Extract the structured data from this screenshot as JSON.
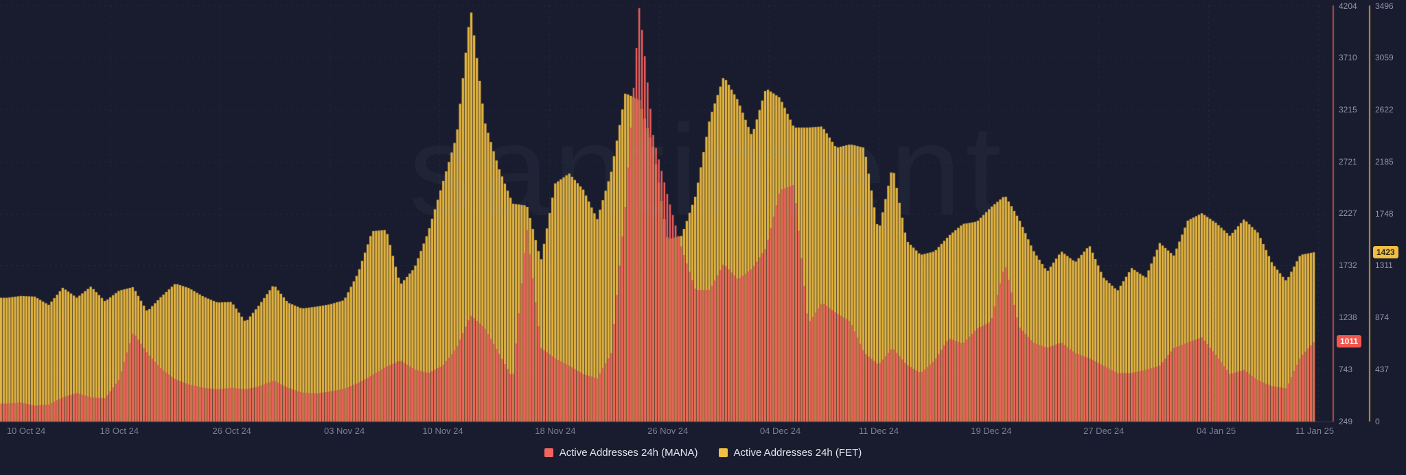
{
  "watermark": "santiment",
  "colors": {
    "background": "#191C2E",
    "mana": "#EE5F5C",
    "fet": "#E3B440",
    "mana_axis_line": "#E05B55",
    "fet_axis_line": "#E3B23C",
    "grid": "rgba(150,160,195,0.10)",
    "baseline": "#343950",
    "tick_text": "#8F94A8",
    "xlabel_text": "#7A7F95"
  },
  "badges": {
    "mana": "1011",
    "fet": "1423"
  },
  "legend": [
    {
      "label": "Active Addresses 24h (MANA)",
      "color": "#F16460"
    },
    {
      "label": "Active Addresses 24h (FET)",
      "color": "#F0BE44"
    }
  ],
  "chart_data": {
    "type": "bar",
    "title": "",
    "xlabel": "",
    "ylabel": "",
    "grid": true,
    "legend_position": "bottom",
    "x_labels": [
      {
        "label": "10 Oct 24",
        "day": 0
      },
      {
        "label": "18 Oct 24",
        "day": 8
      },
      {
        "label": "26 Oct 24",
        "day": 16
      },
      {
        "label": "03 Nov 24",
        "day": 24
      },
      {
        "label": "10 Nov 24",
        "day": 31
      },
      {
        "label": "18 Nov 24",
        "day": 39
      },
      {
        "label": "26 Nov 24",
        "day": 47
      },
      {
        "label": "04 Dec 24",
        "day": 55
      },
      {
        "label": "11 Dec 24",
        "day": 62
      },
      {
        "label": "19 Dec 24",
        "day": 70
      },
      {
        "label": "27 Dec 24",
        "day": 78
      },
      {
        "label": "04 Jan 25",
        "day": 86
      },
      {
        "label": "11 Jan 25",
        "day": 93
      }
    ],
    "days_total": 93,
    "series": [
      {
        "name": "Active Addresses 24h (MANA)",
        "color": "#EE5F5C",
        "current": 1011,
        "axis": {
          "side": "right-inner",
          "min": 249,
          "max": 4204,
          "ticks": [
            249,
            743,
            1238,
            1732,
            2227,
            2721,
            3215,
            3710,
            4204
          ]
        },
        "values": [
          420,
          430,
          400,
          410,
          480,
          520,
          480,
          470,
          650,
          1100,
          900,
          750,
          650,
          600,
          570,
          555,
          570,
          555,
          585,
          640,
          570,
          525,
          515,
          535,
          560,
          615,
          690,
          770,
          830,
          745,
          710,
          780,
          950,
          1260,
          1140,
          900,
          660,
          2100,
          950,
          850,
          780,
          700,
          660,
          900,
          2300,
          4204,
          2950,
          2400,
          1900,
          1500,
          1500,
          1750,
          1600,
          1700,
          1900,
          2450,
          2500,
          1180,
          1380,
          1280,
          1200,
          900,
          790,
          950,
          790,
          710,
          830,
          1040,
          990,
          1130,
          1200,
          1750,
          1150,
          1000,
          950,
          1000,
          900,
          850,
          780,
          710,
          710,
          740,
          780,
          950,
          1000,
          1050,
          880,
          700,
          740,
          640,
          585,
          565,
          860,
          1011
        ]
      },
      {
        "name": "Active Addresses 24h (FET)",
        "color": "#E3B440",
        "current": 1423,
        "axis": {
          "side": "right-outer",
          "min": 0,
          "max": 3496,
          "ticks": [
            0,
            437,
            874,
            1311,
            1748,
            2185,
            2622,
            3059,
            3496
          ]
        },
        "values": [
          1040,
          1055,
          1050,
          980,
          1125,
          1040,
          1135,
          1010,
          1100,
          1130,
          925,
          1050,
          1160,
          1120,
          1050,
          1000,
          1005,
          835,
          985,
          1150,
          1000,
          950,
          965,
          985,
          1020,
          1250,
          1600,
          1610,
          1150,
          1290,
          1600,
          2000,
          2400,
          3480,
          2520,
          2130,
          1830,
          1815,
          1350,
          2000,
          2085,
          1950,
          1700,
          2100,
          2760,
          2700,
          2300,
          1530,
          1560,
          1900,
          2545,
          2900,
          2700,
          2400,
          2800,
          2720,
          2470,
          2470,
          2480,
          2300,
          2330,
          2300,
          1590,
          2150,
          1520,
          1400,
          1430,
          1560,
          1660,
          1680,
          1800,
          1900,
          1700,
          1440,
          1260,
          1430,
          1340,
          1480,
          1210,
          1100,
          1290,
          1210,
          1500,
          1395,
          1690,
          1750,
          1670,
          1560,
          1700,
          1585,
          1330,
          1180,
          1400,
          1423
        ]
      }
    ]
  }
}
